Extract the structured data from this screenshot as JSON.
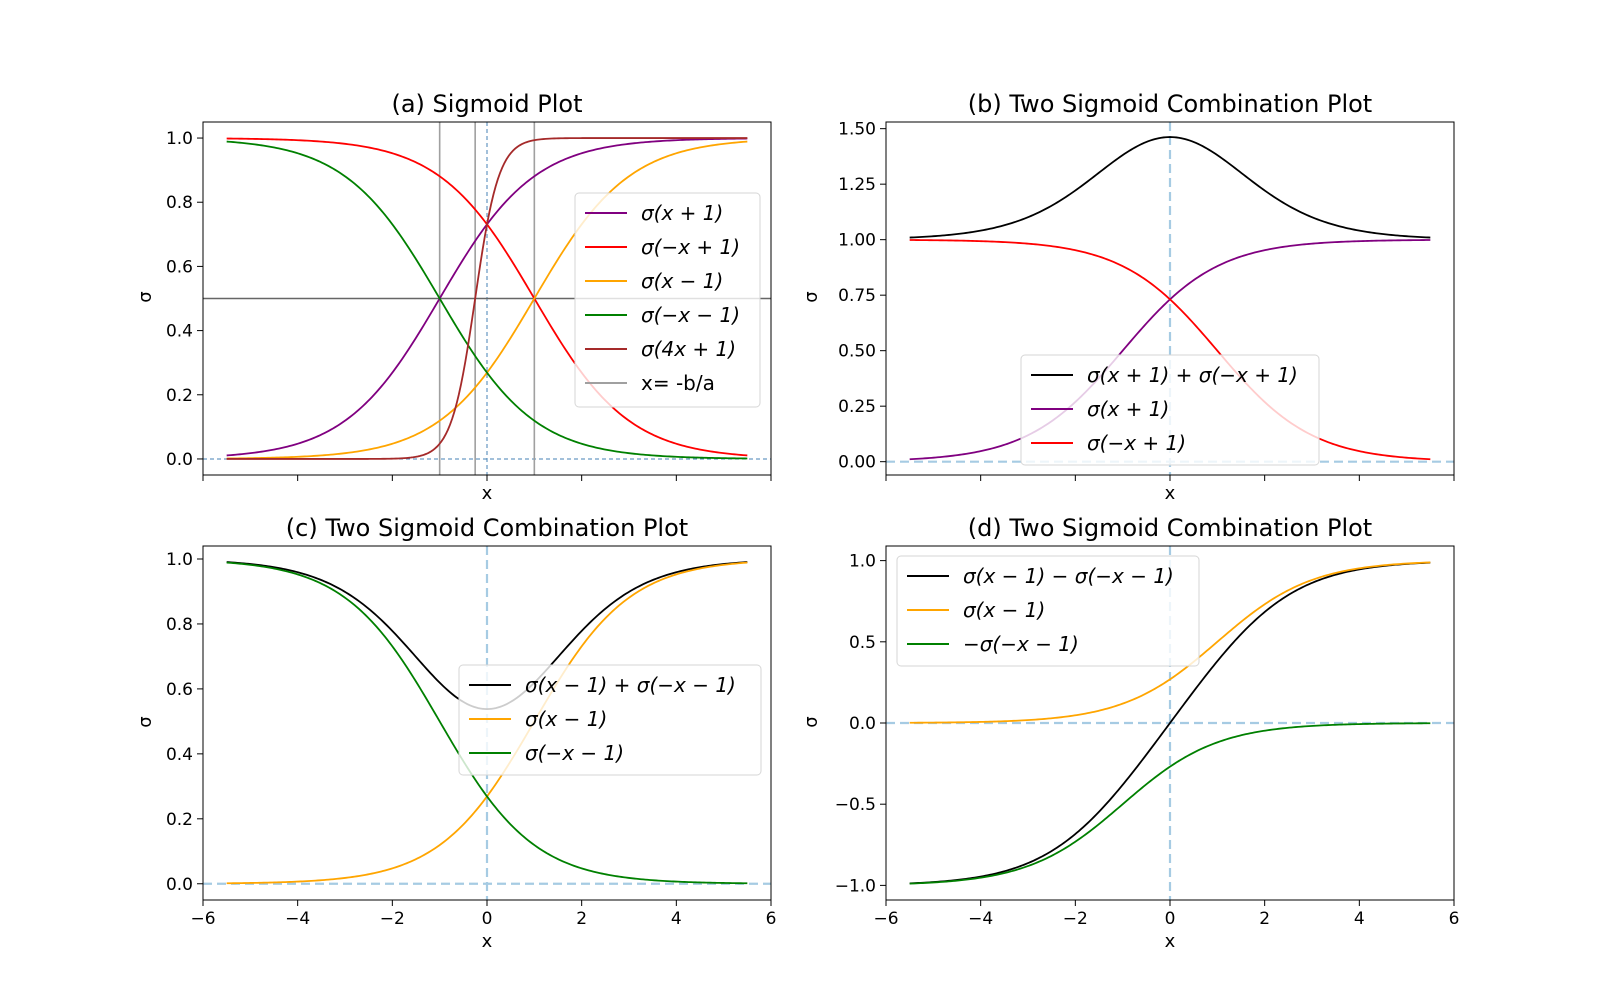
{
  "chart_data": [
    {
      "id": "a",
      "type": "line",
      "title": "(a) Sigmoid Plot",
      "xlabel": "x",
      "ylabel": "σ",
      "xlim": [
        -6,
        6
      ],
      "ylim": [
        -0.05,
        1.05
      ],
      "xticks": [
        -6,
        -4,
        -2,
        0,
        2,
        4,
        6
      ],
      "xtick_labels_visible": false,
      "yticks": [
        0.0,
        0.2,
        0.4,
        0.6,
        0.8,
        1.0
      ],
      "ytick_labels": [
        "0.0",
        "0.2",
        "0.4",
        "0.6",
        "0.8",
        "1.0"
      ],
      "x_range": [
        -5.5,
        5.5
      ],
      "legend_position": "center-right",
      "series": [
        {
          "name": "σ(x + 1)",
          "a": 1,
          "b": 1,
          "color": "#800080"
        },
        {
          "name": "σ(−x + 1)",
          "a": -1,
          "b": 1,
          "color": "#ff0000"
        },
        {
          "name": "σ(x − 1)",
          "a": 1,
          "b": -1,
          "color": "#ffa500"
        },
        {
          "name": "σ(−x − 1)",
          "a": -1,
          "b": -1,
          "color": "#008000"
        },
        {
          "name": "σ(4x + 1)",
          "a": 4,
          "b": 1,
          "color": "#a52a2a"
        }
      ],
      "vlines": {
        "name": "x= -b/a",
        "values": [
          -1,
          -0.25,
          1
        ],
        "color": "#a0a0a0"
      },
      "hline": {
        "value": 0.5,
        "color": "#666666"
      },
      "ref_lines": {
        "x": 0,
        "y": 0,
        "style": "dotted",
        "color": "#4682b4"
      }
    },
    {
      "id": "b",
      "type": "line",
      "title": "(b) Two Sigmoid Combination Plot",
      "xlabel": "x",
      "ylabel": "σ",
      "xlim": [
        -6,
        6
      ],
      "ylim": [
        -0.06,
        1.53
      ],
      "xticks": [
        -6,
        -4,
        -2,
        0,
        2,
        4,
        6
      ],
      "xtick_labels_visible": false,
      "yticks": [
        0.0,
        0.25,
        0.5,
        0.75,
        1.0,
        1.25,
        1.5
      ],
      "ytick_labels": [
        "0.00",
        "0.25",
        "0.50",
        "0.75",
        "1.00",
        "1.25",
        "1.50"
      ],
      "x_range": [
        -5.5,
        5.5
      ],
      "legend_position": "lower-center",
      "series": [
        {
          "name": "σ(x + 1) + σ(−x + 1)",
          "terms": [
            {
              "a": 1,
              "b": 1,
              "s": 1
            },
            {
              "a": -1,
              "b": 1,
              "s": 1
            }
          ],
          "color": "#000000"
        },
        {
          "name": "σ(x + 1)",
          "terms": [
            {
              "a": 1,
              "b": 1,
              "s": 1
            }
          ],
          "color": "#800080"
        },
        {
          "name": "σ(−x + 1)",
          "terms": [
            {
              "a": -1,
              "b": 1,
              "s": 1
            }
          ],
          "color": "#ff0000"
        }
      ],
      "ref_lines": {
        "x": 0,
        "y": 0,
        "style": "dashed",
        "color": "#a6cbe3"
      }
    },
    {
      "id": "c",
      "type": "line",
      "title": "(c) Two Sigmoid Combination Plot",
      "xlabel": "x",
      "ylabel": "σ",
      "xlim": [
        -6,
        6
      ],
      "ylim": [
        -0.05,
        1.04
      ],
      "xticks": [
        -6,
        -4,
        -2,
        0,
        2,
        4,
        6
      ],
      "xtick_labels": [
        "−6",
        "−4",
        "−2",
        "0",
        "2",
        "4",
        "6"
      ],
      "yticks": [
        0.0,
        0.2,
        0.4,
        0.6,
        0.8,
        1.0
      ],
      "ytick_labels": [
        "0.0",
        "0.2",
        "0.4",
        "0.6",
        "0.8",
        "1.0"
      ],
      "x_range": [
        -5.5,
        5.5
      ],
      "legend_position": "center-right",
      "series": [
        {
          "name": "σ(x − 1) + σ(−x − 1)",
          "terms": [
            {
              "a": 1,
              "b": -1,
              "s": 1
            },
            {
              "a": -1,
              "b": -1,
              "s": 1
            }
          ],
          "color": "#000000"
        },
        {
          "name": "σ(x − 1)",
          "terms": [
            {
              "a": 1,
              "b": -1,
              "s": 1
            }
          ],
          "color": "#ffa500"
        },
        {
          "name": "σ(−x − 1)",
          "terms": [
            {
              "a": -1,
              "b": -1,
              "s": 1
            }
          ],
          "color": "#008000"
        }
      ],
      "ref_lines": {
        "x": 0,
        "y": 0,
        "style": "dashed",
        "color": "#a6cbe3"
      }
    },
    {
      "id": "d",
      "type": "line",
      "title": "(d) Two Sigmoid Combination Plot",
      "xlabel": "x",
      "ylabel": "σ",
      "xlim": [
        -6,
        6
      ],
      "ylim": [
        -1.09,
        1.09
      ],
      "xticks": [
        -6,
        -4,
        -2,
        0,
        2,
        4,
        6
      ],
      "xtick_labels": [
        "−6",
        "−4",
        "−2",
        "0",
        "2",
        "4",
        "6"
      ],
      "yticks": [
        -1.0,
        -0.5,
        0.0,
        0.5,
        1.0
      ],
      "ytick_labels": [
        "−1.0",
        "−0.5",
        "0.0",
        "0.5",
        "1.0"
      ],
      "x_range": [
        -5.5,
        5.5
      ],
      "legend_position": "upper-left",
      "series": [
        {
          "name": "σ(x − 1) − σ(−x − 1)",
          "terms": [
            {
              "a": 1,
              "b": -1,
              "s": 1
            },
            {
              "a": -1,
              "b": -1,
              "s": -1
            }
          ],
          "color": "#000000"
        },
        {
          "name": "σ(x − 1)",
          "terms": [
            {
              "a": 1,
              "b": -1,
              "s": 1
            }
          ],
          "color": "#ffa500"
        },
        {
          "name": "−σ(−x − 1)",
          "terms": [
            {
              "a": -1,
              "b": -1,
              "s": -1
            }
          ],
          "color": "#008000"
        }
      ],
      "ref_lines": {
        "x": 0,
        "y": 0,
        "style": "dashed",
        "color": "#a6cbe3"
      }
    }
  ]
}
